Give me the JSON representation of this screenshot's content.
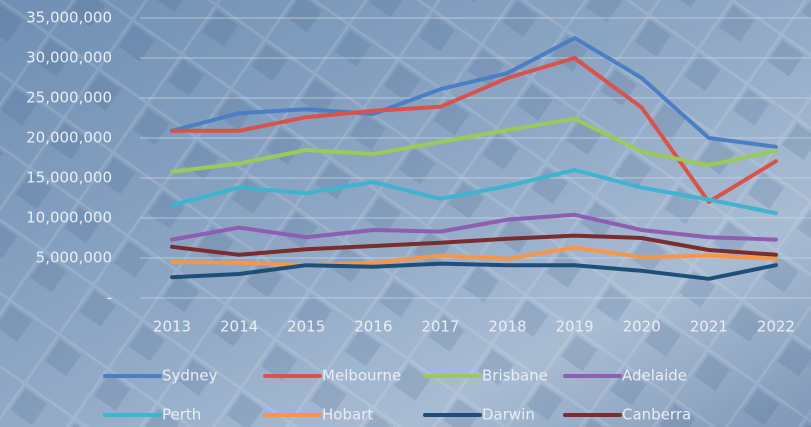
{
  "chart_data": {
    "type": "line",
    "categories": [
      "2013",
      "2014",
      "2015",
      "2016",
      "2017",
      "2018",
      "2019",
      "2020",
      "2021",
      "2022"
    ],
    "series": [
      {
        "name": "Sydney",
        "color": "#4a7fc4",
        "values": [
          20900000,
          23100000,
          23600000,
          23000000,
          26100000,
          28100000,
          32500000,
          27500000,
          20000000,
          18900000
        ]
      },
      {
        "name": "Melbourne",
        "color": "#d9534a",
        "values": [
          20900000,
          20900000,
          22600000,
          23400000,
          23900000,
          27500000,
          30000000,
          23800000,
          12000000,
          17100000
        ]
      },
      {
        "name": "Brisbane",
        "color": "#9bc95a",
        "values": [
          15800000,
          16800000,
          18500000,
          18000000,
          19500000,
          21000000,
          22400000,
          18300000,
          16600000,
          18400000
        ]
      },
      {
        "name": "Adelaide",
        "color": "#8e5fb0",
        "values": [
          7300000,
          8800000,
          7600000,
          8500000,
          8300000,
          9800000,
          10400000,
          8500000,
          7600000,
          7300000
        ]
      },
      {
        "name": "Perth",
        "color": "#3fb4cf",
        "values": [
          11600000,
          13800000,
          13100000,
          14500000,
          12400000,
          14000000,
          16000000,
          13800000,
          12300000,
          10600000
        ]
      },
      {
        "name": "Hobart",
        "color": "#f79646",
        "values": [
          4500000,
          4400000,
          4100000,
          4400000,
          5300000,
          4900000,
          6300000,
          5100000,
          5300000,
          4900000
        ]
      },
      {
        "name": "Darwin",
        "color": "#1f4e79",
        "values": [
          2600000,
          3000000,
          4100000,
          3900000,
          4300000,
          4100000,
          4100000,
          3400000,
          2400000,
          4100000
        ]
      },
      {
        "name": "Canberra",
        "color": "#7b2c2c",
        "values": [
          6400000,
          5400000,
          6100000,
          6500000,
          6900000,
          7400000,
          7800000,
          7500000,
          6000000,
          5400000
        ]
      }
    ],
    "ylim": [
      0,
      35000000
    ],
    "yticks": [
      {
        "value": 0,
        "label": "-"
      },
      {
        "value": 5000000,
        "label": "5,000,000"
      },
      {
        "value": 10000000,
        "label": "10,000,000"
      },
      {
        "value": 15000000,
        "label": "15,000,000"
      },
      {
        "value": 20000000,
        "label": "20,000,000"
      },
      {
        "value": 25000000,
        "label": "25,000,000"
      },
      {
        "value": 30000000,
        "label": "30,000,000"
      },
      {
        "value": 35000000,
        "label": "35,000,000"
      }
    ],
    "grid": true,
    "legend": "bottom"
  }
}
